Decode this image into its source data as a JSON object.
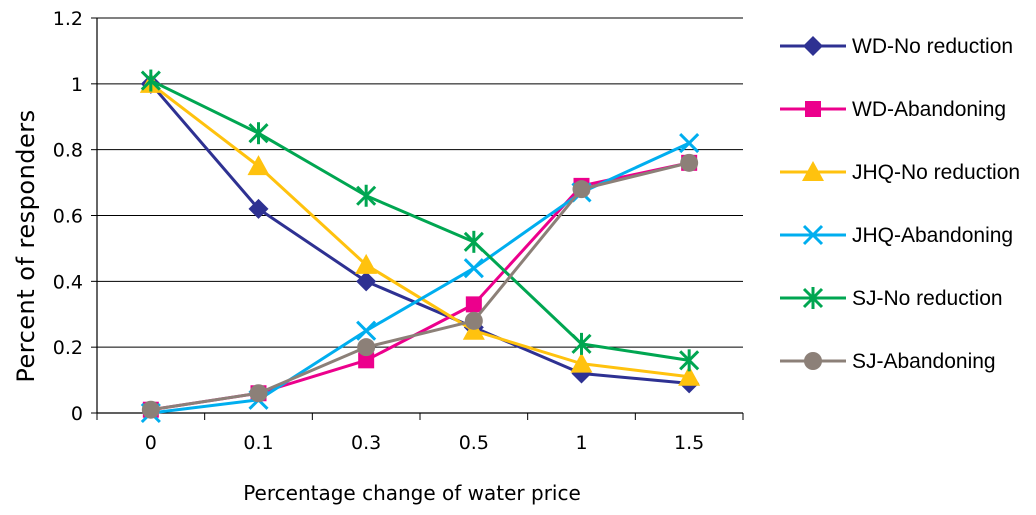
{
  "chart_data": {
    "type": "line",
    "title": "",
    "xlabel": "Percentage change of water price",
    "ylabel": "Percent of responders",
    "categories": [
      "0",
      "0.1",
      "0.3",
      "0.5",
      "1",
      "1.5"
    ],
    "ylim": [
      0,
      1.2
    ],
    "yticks": [
      "0",
      "0.2",
      "0.4",
      "0.6",
      "0.8",
      "1",
      "1.2"
    ],
    "grid": "horizontal",
    "legend_position": "right",
    "series": [
      {
        "name": "WD-No reduction",
        "marker": "diamond",
        "color": "#2E3192",
        "values": [
          1.0,
          0.62,
          0.4,
          0.26,
          0.12,
          0.09
        ]
      },
      {
        "name": "WD-Abandoning",
        "marker": "square",
        "color": "#EC008C",
        "values": [
          0.01,
          0.06,
          0.16,
          0.33,
          0.69,
          0.76
        ]
      },
      {
        "name": "JHQ-No reduction",
        "marker": "triangle",
        "color": "#FFC20E",
        "values": [
          1.0,
          0.75,
          0.45,
          0.25,
          0.15,
          0.11
        ]
      },
      {
        "name": "JHQ-Abandoning",
        "marker": "x",
        "color": "#00AEEF",
        "values": [
          0.0,
          0.04,
          0.25,
          0.44,
          0.67,
          0.82
        ]
      },
      {
        "name": "SJ-No reduction",
        "marker": "asterisk",
        "color": "#00A651",
        "values": [
          1.01,
          0.85,
          0.66,
          0.52,
          0.21,
          0.16
        ]
      },
      {
        "name": "SJ-Abandoning",
        "marker": "circle",
        "color": "#8C8078",
        "values": [
          0.01,
          0.06,
          0.2,
          0.28,
          0.68,
          0.76
        ]
      }
    ]
  }
}
